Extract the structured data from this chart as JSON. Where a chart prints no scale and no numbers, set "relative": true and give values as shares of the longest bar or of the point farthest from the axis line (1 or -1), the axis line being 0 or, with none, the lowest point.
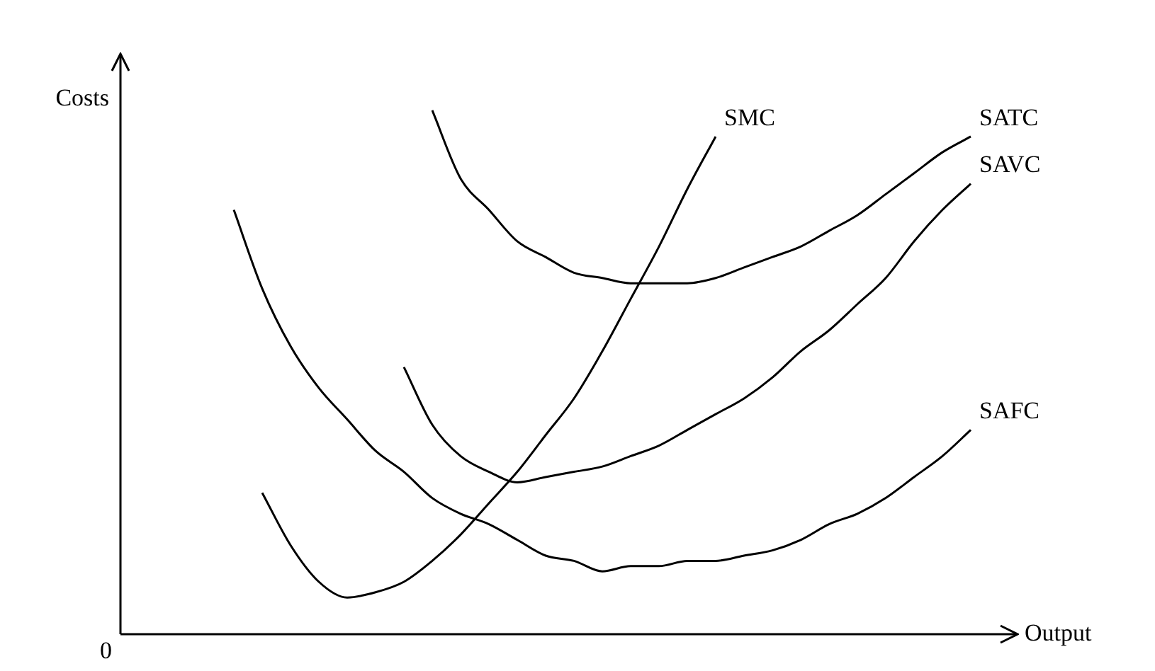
{
  "chart_data": {
    "type": "line",
    "relative": true,
    "marker": "none",
    "xlabel": "Output",
    "ylabel": "Costs",
    "annotations": [
      "0"
    ],
    "categories": [
      null,
      null,
      null,
      null,
      null,
      null,
      null,
      null,
      null,
      null,
      null,
      null,
      null,
      null,
      null,
      null,
      null,
      null,
      null,
      null,
      null,
      null,
      null,
      null,
      null,
      null,
      null,
      null,
      null,
      null,
      null,
      null
    ],
    "series": [
      {
        "name": "SMC",
        "color": "#000000",
        "values": [
          null,
          null,
          null,
          null,
          null,
          0.27,
          0.17,
          0.1,
          0.07,
          0.08,
          0.1,
          0.14,
          0.19,
          0.25,
          0.31,
          0.38,
          0.45,
          0.54,
          0.64,
          0.74,
          0.85,
          0.95,
          null,
          null,
          null,
          null,
          null,
          null,
          null,
          null,
          null,
          null
        ]
      },
      {
        "name": "SATC",
        "color": "#000000",
        "values": [
          null,
          null,
          null,
          null,
          null,
          null,
          null,
          null,
          null,
          null,
          null,
          1.0,
          0.87,
          0.81,
          0.75,
          0.72,
          0.69,
          0.68,
          0.67,
          0.67,
          0.67,
          0.68,
          0.7,
          0.72,
          0.74,
          0.77,
          0.8,
          0.84,
          0.88,
          0.92,
          0.95,
          null
        ]
      },
      {
        "name": "SAVC",
        "color": "#000000",
        "values": [
          null,
          null,
          null,
          null,
          null,
          null,
          null,
          null,
          null,
          null,
          0.51,
          0.4,
          0.34,
          0.31,
          0.29,
          0.3,
          0.31,
          0.32,
          0.34,
          0.36,
          0.39,
          0.42,
          0.45,
          0.49,
          0.54,
          0.58,
          0.63,
          0.68,
          0.75,
          0.81,
          0.86,
          null
        ]
      },
      {
        "name": "SAFC",
        "color": "#000000",
        "values": [
          null,
          null,
          null,
          null,
          0.81,
          0.66,
          0.55,
          0.47,
          0.41,
          0.35,
          0.31,
          0.26,
          0.23,
          0.21,
          0.18,
          0.15,
          0.14,
          0.12,
          0.13,
          0.13,
          0.14,
          0.14,
          0.15,
          0.16,
          0.18,
          0.21,
          0.23,
          0.26,
          0.3,
          0.34,
          0.39,
          null
        ]
      }
    ]
  }
}
